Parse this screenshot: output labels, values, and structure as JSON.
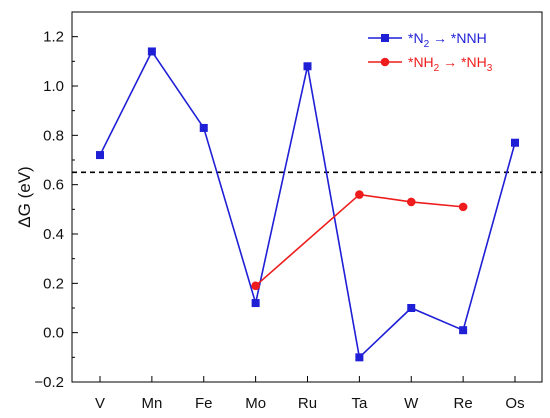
{
  "chart_data": {
    "type": "line",
    "categories": [
      "V",
      "Mn",
      "Fe",
      "Mo",
      "Ru",
      "Ta",
      "W",
      "Re",
      "Os"
    ],
    "ylabel": "ΔG (eV)",
    "ylim": [
      -0.2,
      1.3
    ],
    "yticks": [
      -0.2,
      0.0,
      0.2,
      0.4,
      0.6,
      0.8,
      1.0,
      1.2
    ],
    "ytick_labels": [
      "−0.2",
      "0.0",
      "0.2",
      "0.4",
      "0.6",
      "0.8",
      "1.0",
      "1.2"
    ],
    "reference_line": {
      "y": 0.65,
      "style": "dashed",
      "color": "#000000"
    },
    "grid": false,
    "legend_position": "top-right",
    "series": [
      {
        "name_parts": [
          "*N",
          "2",
          " → *NNH"
        ],
        "color": "#1f1fd6",
        "marker": "square",
        "values": [
          0.72,
          1.14,
          0.83,
          0.12,
          1.08,
          -0.1,
          0.1,
          0.01,
          0.77
        ]
      },
      {
        "name_parts": [
          "*NH",
          "2",
          " → *NH",
          "3"
        ],
        "color": "#ee1c1c",
        "marker": "circle",
        "values": [
          null,
          null,
          null,
          0.19,
          null,
          0.56,
          0.53,
          0.51,
          null
        ]
      }
    ]
  }
}
